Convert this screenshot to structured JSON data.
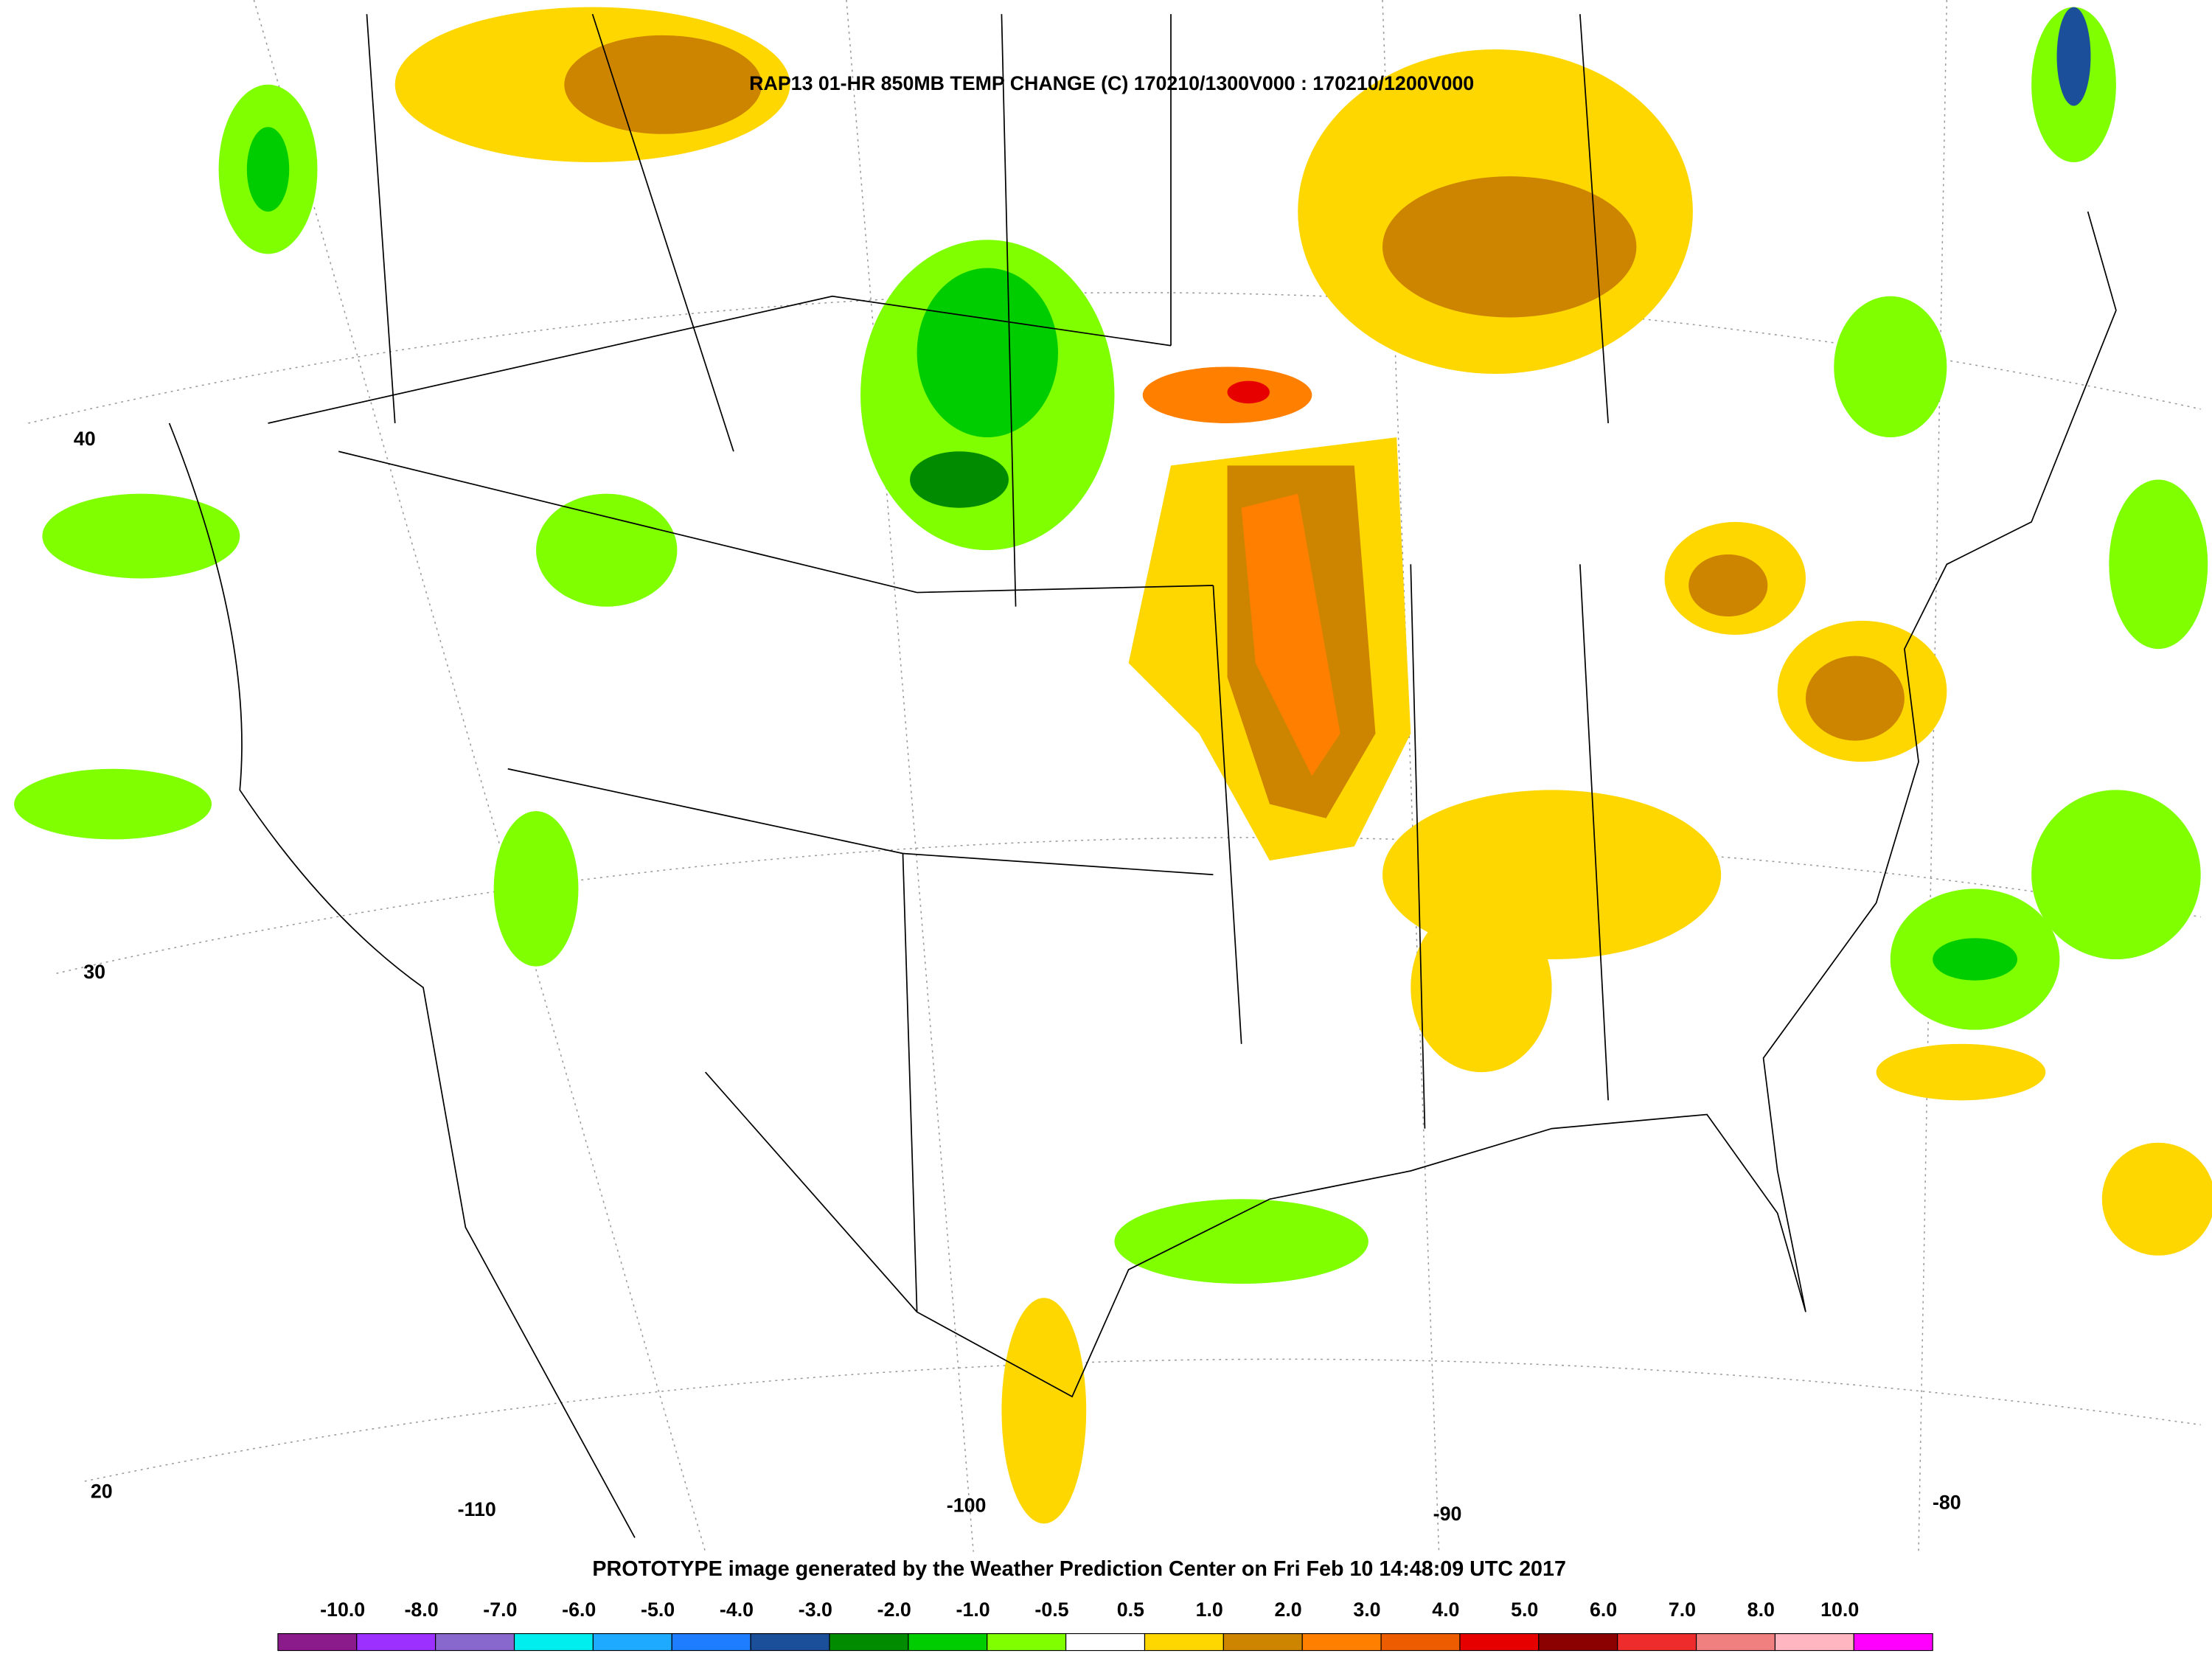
{
  "header": {
    "title": "RAP13 01-HR 850MB TEMP CHANGE (C) 170210/1300V000 : 170210/1200V000"
  },
  "footer": {
    "text": "PROTOTYPE image generated by the Weather Prediction Center on Fri Feb 10 14:48:09 UTC 2017"
  },
  "latitude_labels": [
    "40",
    "30",
    "20"
  ],
  "longitude_labels": [
    "-110",
    "-100",
    "-90",
    "-80"
  ],
  "colorbar": {
    "labels": [
      "-10.0",
      "-8.0",
      "-7.0",
      "-6.0",
      "-5.0",
      "-4.0",
      "-3.0",
      "-2.0",
      "-1.0",
      "-0.5",
      "0.5",
      "1.0",
      "2.0",
      "3.0",
      "4.0",
      "5.0",
      "6.0",
      "7.0",
      "8.0",
      "10.0"
    ],
    "colors": [
      "#8b1a8b",
      "#9b30ff",
      "#8968cd",
      "#00eeee",
      "#1eaaff",
      "#1e7dff",
      "#1c4f99",
      "#008b00",
      "#00cd00",
      "#7fff00",
      "#ffffff",
      "#ffd700",
      "#cd8500",
      "#ff7f00",
      "#ee5c00",
      "#e60000",
      "#8b0000",
      "#ee2c2c",
      "#f08080",
      "#ffb6c1",
      "#ff00ff"
    ]
  }
}
